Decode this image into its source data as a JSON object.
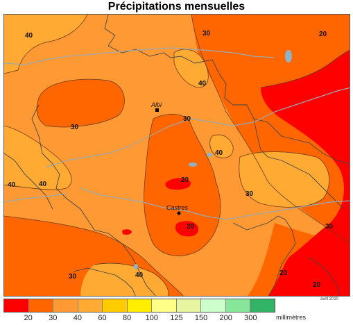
{
  "title": "Précipitations mensuelles",
  "credit": "avril 2010",
  "legend": {
    "unit": "millimètres",
    "colors": [
      "#ff0000",
      "#ff6600",
      "#ff9933",
      "#ffaa33",
      "#ffcc00",
      "#ffee00",
      "#ffff88",
      "#e8f5a0",
      "#ccffcc",
      "#88e69a",
      "#33b366"
    ],
    "ticks": [
      "20",
      "30",
      "40",
      "60",
      "80",
      "100",
      "125",
      "150",
      "200",
      "300"
    ]
  },
  "cities": [
    {
      "name": "Albi"
    },
    {
      "name": "Castres"
    }
  ],
  "isolines": [
    "40",
    "30",
    "20",
    "40",
    "30",
    "30",
    "40",
    "30",
    "40",
    "40",
    "20",
    "20",
    "30",
    "20",
    "30",
    "40",
    "20"
  ]
}
